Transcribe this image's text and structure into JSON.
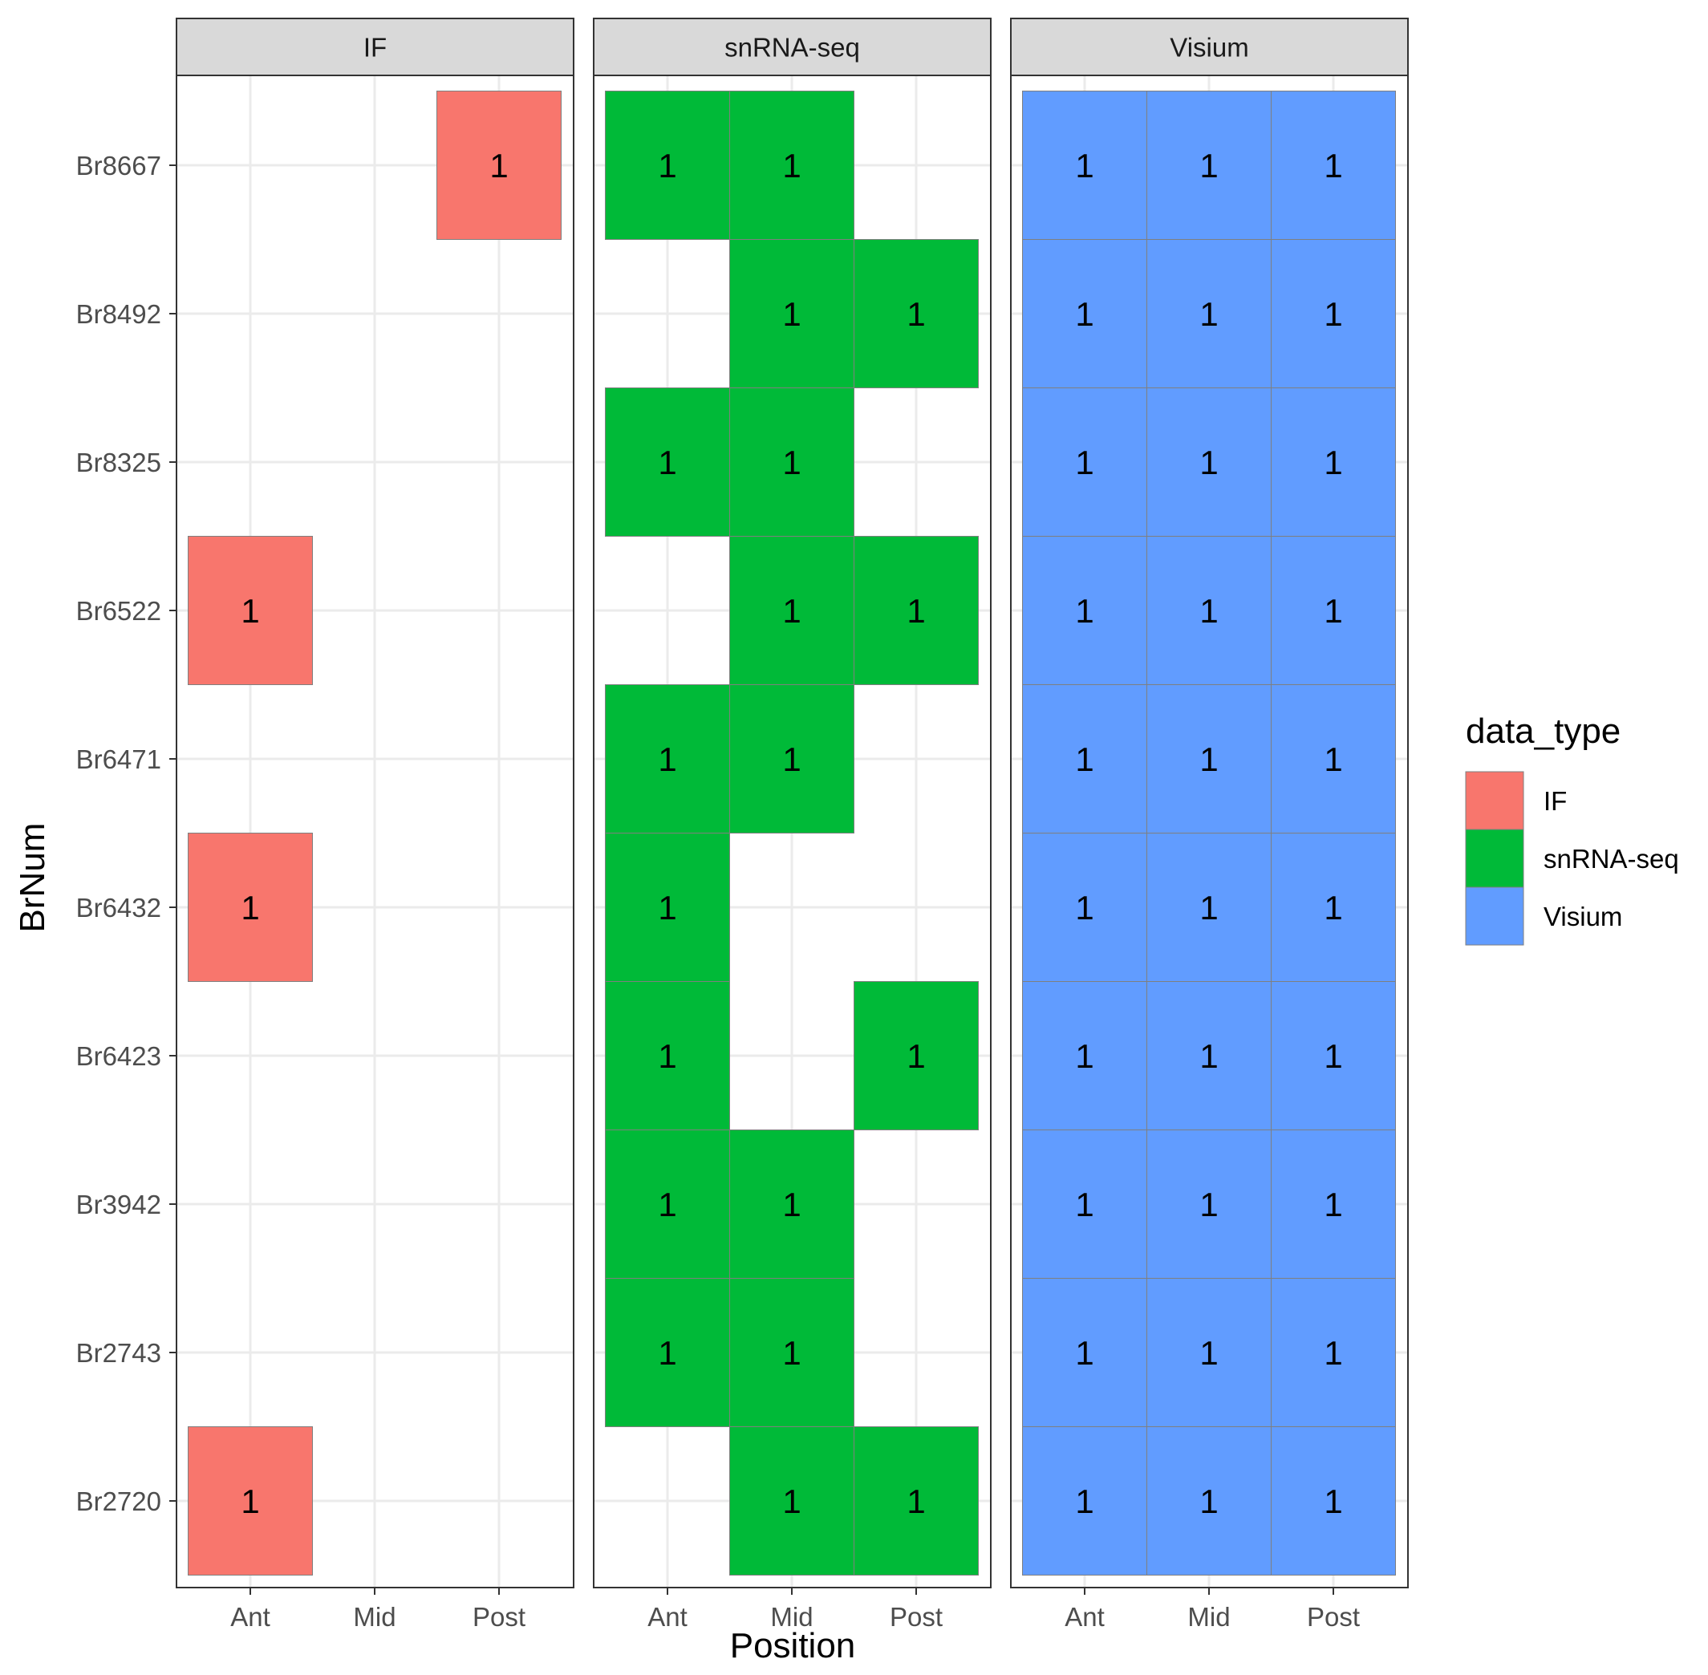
{
  "chart_data": {
    "type": "heatmap",
    "title": "",
    "xlabel": "Position",
    "ylabel": "BrNum",
    "x_categories": [
      "Ant",
      "Mid",
      "Post"
    ],
    "y_categories": [
      "Br8667",
      "Br8492",
      "Br8325",
      "Br6522",
      "Br6471",
      "Br6432",
      "Br6423",
      "Br3942",
      "Br2743",
      "Br2720"
    ],
    "facets": [
      {
        "name": "IF",
        "color": "#F8766D",
        "cells": [
          {
            "BrNum": "Br8667",
            "Position": "Post",
            "value": 1
          },
          {
            "BrNum": "Br6522",
            "Position": "Ant",
            "value": 1
          },
          {
            "BrNum": "Br6432",
            "Position": "Ant",
            "value": 1
          },
          {
            "BrNum": "Br2720",
            "Position": "Ant",
            "value": 1
          }
        ]
      },
      {
        "name": "snRNA-seq",
        "color": "#00BA38",
        "cells": [
          {
            "BrNum": "Br8667",
            "Position": "Ant",
            "value": 1
          },
          {
            "BrNum": "Br8667",
            "Position": "Mid",
            "value": 1
          },
          {
            "BrNum": "Br8492",
            "Position": "Mid",
            "value": 1
          },
          {
            "BrNum": "Br8492",
            "Position": "Post",
            "value": 1
          },
          {
            "BrNum": "Br8325",
            "Position": "Ant",
            "value": 1
          },
          {
            "BrNum": "Br8325",
            "Position": "Mid",
            "value": 1
          },
          {
            "BrNum": "Br6522",
            "Position": "Mid",
            "value": 1
          },
          {
            "BrNum": "Br6522",
            "Position": "Post",
            "value": 1
          },
          {
            "BrNum": "Br6471",
            "Position": "Ant",
            "value": 1
          },
          {
            "BrNum": "Br6471",
            "Position": "Mid",
            "value": 1
          },
          {
            "BrNum": "Br6432",
            "Position": "Ant",
            "value": 1
          },
          {
            "BrNum": "Br6423",
            "Position": "Ant",
            "value": 1
          },
          {
            "BrNum": "Br6423",
            "Position": "Post",
            "value": 1
          },
          {
            "BrNum": "Br3942",
            "Position": "Ant",
            "value": 1
          },
          {
            "BrNum": "Br3942",
            "Position": "Mid",
            "value": 1
          },
          {
            "BrNum": "Br2743",
            "Position": "Ant",
            "value": 1
          },
          {
            "BrNum": "Br2743",
            "Position": "Mid",
            "value": 1
          },
          {
            "BrNum": "Br2720",
            "Position": "Mid",
            "value": 1
          },
          {
            "BrNum": "Br2720",
            "Position": "Post",
            "value": 1
          }
        ]
      },
      {
        "name": "Visium",
        "color": "#619CFF",
        "cells": [
          {
            "BrNum": "Br8667",
            "Position": "Ant",
            "value": 1
          },
          {
            "BrNum": "Br8667",
            "Position": "Mid",
            "value": 1
          },
          {
            "BrNum": "Br8667",
            "Position": "Post",
            "value": 1
          },
          {
            "BrNum": "Br8492",
            "Position": "Ant",
            "value": 1
          },
          {
            "BrNum": "Br8492",
            "Position": "Mid",
            "value": 1
          },
          {
            "BrNum": "Br8492",
            "Position": "Post",
            "value": 1
          },
          {
            "BrNum": "Br8325",
            "Position": "Ant",
            "value": 1
          },
          {
            "BrNum": "Br8325",
            "Position": "Mid",
            "value": 1
          },
          {
            "BrNum": "Br8325",
            "Position": "Post",
            "value": 1
          },
          {
            "BrNum": "Br6522",
            "Position": "Ant",
            "value": 1
          },
          {
            "BrNum": "Br6522",
            "Position": "Mid",
            "value": 1
          },
          {
            "BrNum": "Br6522",
            "Position": "Post",
            "value": 1
          },
          {
            "BrNum": "Br6471",
            "Position": "Ant",
            "value": 1
          },
          {
            "BrNum": "Br6471",
            "Position": "Mid",
            "value": 1
          },
          {
            "BrNum": "Br6471",
            "Position": "Post",
            "value": 1
          },
          {
            "BrNum": "Br6432",
            "Position": "Ant",
            "value": 1
          },
          {
            "BrNum": "Br6432",
            "Position": "Mid",
            "value": 1
          },
          {
            "BrNum": "Br6432",
            "Position": "Post",
            "value": 1
          },
          {
            "BrNum": "Br6423",
            "Position": "Ant",
            "value": 1
          },
          {
            "BrNum": "Br6423",
            "Position": "Mid",
            "value": 1
          },
          {
            "BrNum": "Br6423",
            "Position": "Post",
            "value": 1
          },
          {
            "BrNum": "Br3942",
            "Position": "Ant",
            "value": 1
          },
          {
            "BrNum": "Br3942",
            "Position": "Mid",
            "value": 1
          },
          {
            "BrNum": "Br3942",
            "Position": "Post",
            "value": 1
          },
          {
            "BrNum": "Br2743",
            "Position": "Ant",
            "value": 1
          },
          {
            "BrNum": "Br2743",
            "Position": "Mid",
            "value": 1
          },
          {
            "BrNum": "Br2743",
            "Position": "Post",
            "value": 1
          },
          {
            "BrNum": "Br2720",
            "Position": "Ant",
            "value": 1
          },
          {
            "BrNum": "Br2720",
            "Position": "Mid",
            "value": 1
          },
          {
            "BrNum": "Br2720",
            "Position": "Post",
            "value": 1
          }
        ]
      }
    ],
    "legend": {
      "title": "data_type",
      "position": "right",
      "entries": [
        {
          "label": "IF",
          "color": "#F8766D"
        },
        {
          "label": "snRNA-seq",
          "color": "#00BA38"
        },
        {
          "label": "Visium",
          "color": "#619CFF"
        }
      ]
    },
    "grid": true,
    "style": {
      "strip_fill": "#D9D9D9",
      "panel_border": "#333333",
      "grid_color": "#EBEBEB",
      "tile_border": "#7F7F7F"
    }
  }
}
